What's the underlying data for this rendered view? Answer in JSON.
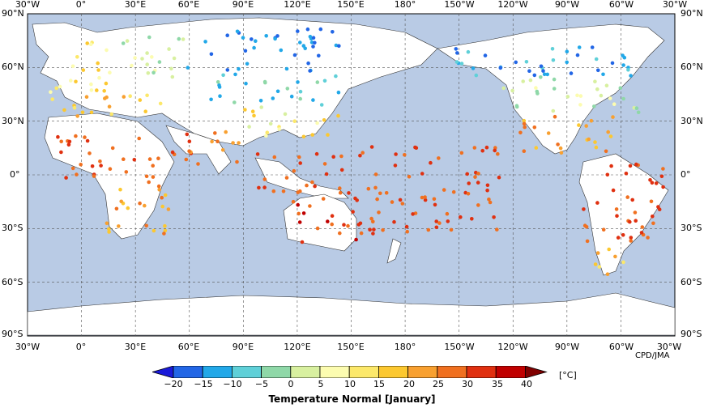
{
  "map": {
    "ocean_color": "#b9cbe5",
    "land_color": "#ffffff",
    "lon_labels": [
      "30°W",
      "0°",
      "30°E",
      "60°E",
      "90°E",
      "120°E",
      "150°E",
      "180°",
      "150°W",
      "120°W",
      "90°W",
      "60°W",
      "30°W"
    ],
    "lat_labels": [
      "90°N",
      "60°N",
      "30°N",
      "0°",
      "30°S",
      "60°S",
      "90°S"
    ],
    "credit": "CPD/JMA"
  },
  "legend": {
    "title": "Temperature Normal [January]",
    "unit": "[°C]",
    "ticks": [
      "−20",
      "−15",
      "−10",
      "−5",
      "0",
      "5",
      "10",
      "15",
      "20",
      "25",
      "30",
      "35",
      "40"
    ],
    "colors": [
      "#1a1ad9",
      "#2266e6",
      "#22a8e8",
      "#5fd0d8",
      "#8fd8a8",
      "#d8f0a0",
      "#fcfcb0",
      "#fce86a",
      "#fcc830",
      "#f8a030",
      "#f07020",
      "#e03010",
      "#c00000",
      "#800000"
    ]
  }
}
